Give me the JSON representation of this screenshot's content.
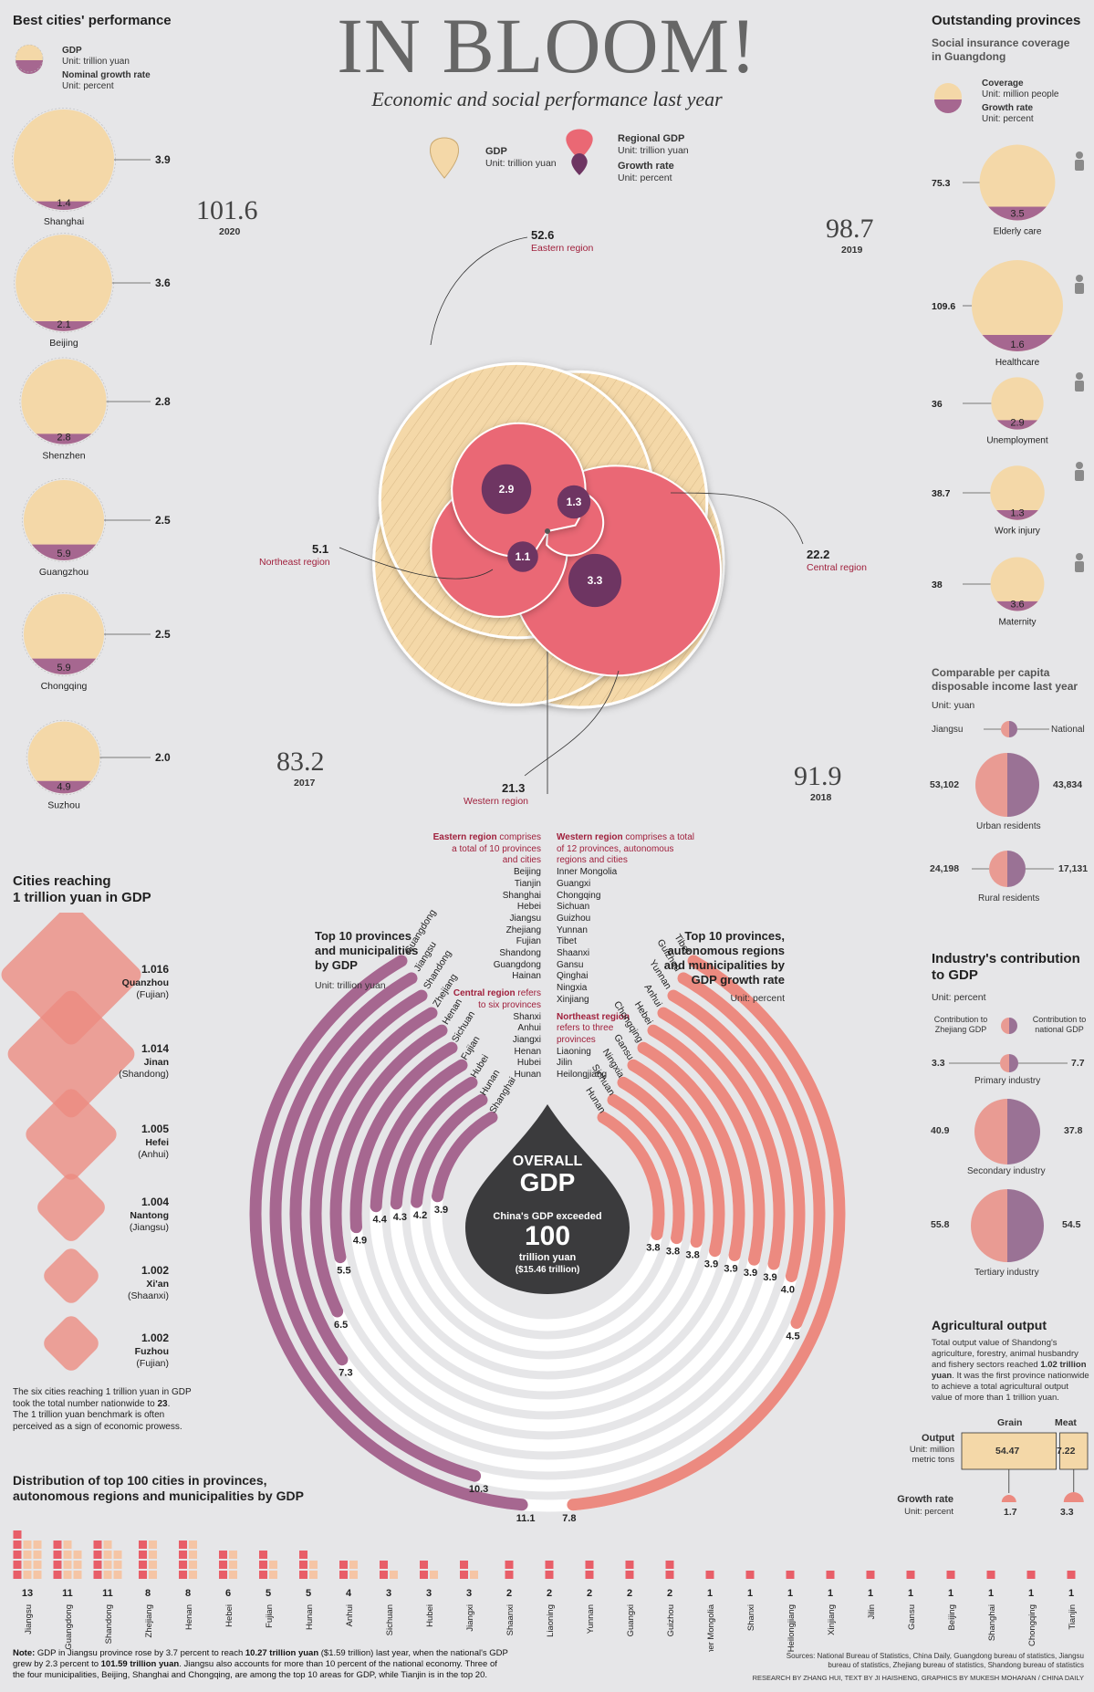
{
  "header": {
    "title": "IN BLOOM!",
    "subtitle": "Economic and social performance last year"
  },
  "flower_legend": {
    "gdp_label": "GDP",
    "gdp_unit": "Unit: trillion yuan",
    "regional_label": "Regional GDP",
    "regional_unit": "Unit: trillion yuan",
    "growth_label": "Growth rate",
    "growth_unit": "Unit: percent"
  },
  "best_cities": {
    "title": "Best cities' performance",
    "legend_gdp": "GDP",
    "legend_gdp_unit": "Unit: trillion yuan",
    "legend_growth": "Nominal growth rate",
    "legend_growth_unit": "Unit: percent",
    "items": [
      {
        "name": "Shanghai",
        "gdp": "3.9",
        "growth": "1.4"
      },
      {
        "name": "Beijing",
        "gdp": "3.6",
        "growth": "2.1"
      },
      {
        "name": "Shenzhen",
        "gdp": "2.8",
        "growth": "2.8"
      },
      {
        "name": "Guangzhou",
        "gdp": "2.5",
        "growth": "5.9"
      },
      {
        "name": "Chongqing",
        "gdp": "2.5",
        "growth": "5.9"
      },
      {
        "name": "Suzhou",
        "gdp": "2.0",
        "growth": "4.9"
      }
    ]
  },
  "trillion_cities": {
    "title_line1": "Cities reaching",
    "title_line2": "1 trillion yuan in GDP",
    "items": [
      {
        "value": "1.016",
        "city": "Quanzhou",
        "province": "(Fujian)"
      },
      {
        "value": "1.014",
        "city": "Jinan",
        "province": "(Shandong)"
      },
      {
        "value": "1.005",
        "city": "Hefei",
        "province": "(Anhui)"
      },
      {
        "value": "1.004",
        "city": "Nantong",
        "province": "(Jiangsu)"
      },
      {
        "value": "1.002",
        "city": "Xi'an",
        "province": "(Shaanxi)"
      },
      {
        "value": "1.002",
        "city": "Fuzhou",
        "province": "(Fujian)"
      }
    ],
    "note_line1": "The six cities reaching 1 trillion yuan in GDP",
    "note_line2_pre": "took the total number nationwide to ",
    "note_line2_num": "23",
    "note_line2_post": ".",
    "note_line3": "The 1 trillion yuan benchmark is often",
    "note_line4": "perceived as a sign of economic prowess."
  },
  "outstanding": {
    "title": "Outstanding provinces",
    "subtitle_line1": "Social insurance coverage",
    "subtitle_line2": "in Guangdong",
    "legend_coverage": "Coverage",
    "legend_coverage_unit": "Unit: million people",
    "legend_growth": "Growth rate",
    "legend_growth_unit": "Unit: percent",
    "items": [
      {
        "name": "Elderly care",
        "coverage": "75.3",
        "growth": "3.5"
      },
      {
        "name": "Healthcare",
        "coverage": "109.6",
        "growth": "1.6"
      },
      {
        "name": "Unemployment",
        "coverage": "36",
        "growth": "2.9"
      },
      {
        "name": "Work injury",
        "coverage": "38.7",
        "growth": "1.3"
      },
      {
        "name": "Maternity",
        "coverage": "38",
        "growth": "3.6"
      }
    ]
  },
  "income": {
    "title_line1": "Comparable per capita",
    "title_line2": "disposable income last year",
    "unit": "Unit: yuan",
    "legend_left": "Jiangsu",
    "legend_right": "National",
    "urban_label": "Urban residents",
    "urban_left": "53,102",
    "urban_right": "43,834",
    "rural_label": "Rural residents",
    "rural_left": "24,198",
    "rural_right": "17,131"
  },
  "industry": {
    "title_line1": "Industry's contribution",
    "title_line2": "to GDP",
    "unit": "Unit: percent",
    "legend_left_1": "Contribution to",
    "legend_left_2": "Zhejiang GDP",
    "legend_right_1": "Contribution to",
    "legend_right_2": "national GDP",
    "primary_label": "Primary industry",
    "primary_left": "3.3",
    "primary_right": "7.7",
    "secondary_label": "Secondary industry",
    "secondary_left": "40.9",
    "secondary_right": "37.8",
    "tertiary_label": "Tertiary industry",
    "tertiary_left": "55.8",
    "tertiary_right": "54.5"
  },
  "agri": {
    "title": "Agricultural output",
    "text_line1": "Total output value of Shandong's",
    "text_line2": "agriculture, forestry, animal husbandry",
    "text_line3_pre": "and fishery sectors reached ",
    "text_line3_bold": "1.02 trillion",
    "text_line4_bold": "yuan",
    "text_line4_post": ". It was the first province nationwide",
    "text_line5": "to achieve a total agricultural output",
    "text_line6": "value of more than 1 trillion yuan.",
    "col_grain": "Grain",
    "col_meat": "Meat",
    "output_label": "Output",
    "output_unit_1": "Unit: million",
    "output_unit_2": "metric tons",
    "grain_output": "54.47",
    "meat_output": "7.22",
    "growth_label": "Growth rate",
    "growth_unit": "Unit: percent",
    "grain_growth": "1.7",
    "meat_growth": "3.3"
  },
  "flower": {
    "years": [
      {
        "year": "2020",
        "value": "101.6"
      },
      {
        "year": "2019",
        "value": "98.7"
      },
      {
        "year": "2017",
        "value": "83.2"
      },
      {
        "year": "2018",
        "value": "91.9"
      }
    ],
    "regions": [
      {
        "name": "Eastern region",
        "gdp": "52.6",
        "growth": "2.9"
      },
      {
        "name": "Central region",
        "gdp": "22.2",
        "growth": "1.3"
      },
      {
        "name": "Northeast region",
        "gdp": "5.1",
        "growth": "1.1"
      },
      {
        "name": "Western region",
        "gdp": "21.3",
        "growth": "3.3"
      }
    ]
  },
  "region_lists": {
    "eastern_head_1": "Eastern region",
    "eastern_head_1b": " comprises",
    "eastern_head_2": "a total of 10 provinces",
    "eastern_head_3": "and cities",
    "eastern": [
      "Beijing",
      "Tianjin",
      "Shanghai",
      "Hebei",
      "Jiangsu",
      "Zhejiang",
      "Fujian",
      "Shandong",
      "Guangdong",
      "Hainan"
    ],
    "central_head_1": "Central region",
    "central_head_1b": " refers",
    "central_head_2": "to six provinces",
    "central": [
      "Shanxi",
      "Anhui",
      "Jiangxi",
      "Henan",
      "Hubei",
      "Hunan"
    ],
    "western_head_1": "Western region",
    "western_head_1b": " comprises a total",
    "western_head_2": "of 12 provinces, autonomous",
    "western_head_3": "regions and cities",
    "western": [
      "Inner Mongolia",
      "Guangxi",
      "Chongqing",
      "Sichuan",
      "Guizhou",
      "Yunnan",
      "Tibet",
      "Shaanxi",
      "Gansu",
      "Qinghai",
      "Ningxia",
      "Xinjiang"
    ],
    "northeast_head_1": "Northeast region",
    "northeast_head_2": "refers to three",
    "northeast_head_3": "provinces",
    "northeast": [
      "Liaoning",
      "Jilin",
      "Heilongjiang"
    ]
  },
  "overall": {
    "title_1": "OVERALL",
    "title_2": "GDP",
    "text_1": "China's GDP exceeded",
    "big": "100",
    "text_2": "trillion yuan",
    "text_3": "($15.46 trillion)"
  },
  "top10_gdp_title": {
    "line1": "Top 10 provinces",
    "line2": "and municipalities",
    "line3": "by GDP",
    "unit": "Unit: trillion yuan"
  },
  "top10_growth_title": {
    "line1": "Top 10 provinces,",
    "line2": "autonomous regions",
    "line3": "and municipalities by",
    "line4": "GDP growth rate",
    "unit": "Unit: percent"
  },
  "distribution": {
    "title_line1": "Distribution of top 100 cities in provinces,",
    "title_line2": "autonomous regions and municipalities by GDP"
  },
  "footer": {
    "note_prefix": "Note:",
    "note_line1_a": " GDP in Jiangsu province rose by 3.7 percent to reach ",
    "note_line1_b": "10.27 trillion yuan",
    "note_line1_c": " ($1.59 trillion) last year, when the national's GDP",
    "note_line2_a": "grew by 2.3 percent to ",
    "note_line2_b": "101.59 trillion yuan",
    "note_line2_c": ". Jiangsu also accounts for more than 10 percent of the national economy. Three of",
    "note_line3": "the four municipalities, Beijing, Shanghai and Chongqing, are among the top 10 areas for GDP, while Tianjin is in the top 20.",
    "sources_1": "Sources: National Bureau of Statistics, China Daily, Guangdong bureau of statistics, Jiangsu",
    "sources_2": "bureau of statistics, Zhejiang bureau of statistics, Shandong bureau of statistics",
    "credits": "RESEARCH BY ZHANG HUI, TEXT BY JI HAISHENG, GRAPHICS BY MUKESH MOHANAN / CHINA DAILY"
  },
  "colors": {
    "cream": "#f4d8a8",
    "pink": "#ea6874",
    "plum": "#6e3562",
    "purple_arc": "#a66790",
    "salmon_arc": "#ec8a80",
    "square_red": "#e85e68",
    "square_light": "#f5c5a5",
    "dark_drop": "#3b3b3d"
  },
  "chart_data": [
    {
      "type": "bar",
      "title": "Top 10 provinces and municipalities by GDP",
      "unit": "Unit: trillion yuan",
      "categories": [
        "Guangdong",
        "Jiangsu",
        "Shandong",
        "Zhejiang",
        "Henan",
        "Sichuan",
        "Fujian",
        "Hubei",
        "Hunan",
        "Shanghai"
      ],
      "values": [
        11.1,
        10.3,
        7.3,
        6.5,
        5.5,
        4.9,
        4.4,
        4.3,
        4.2,
        3.9
      ]
    },
    {
      "type": "bar",
      "title": "Top 10 provinces, autonomous regions and municipalities by GDP growth rate",
      "unit": "Unit: percent",
      "categories": [
        "Tibet",
        "Guizhou",
        "Yunnan",
        "Anhui",
        "Hebei",
        "Chongqing",
        "Gansu",
        "Ningxia",
        "Sichuan",
        "Hunan"
      ],
      "values": [
        7.8,
        4.5,
        4.0,
        3.9,
        3.9,
        3.9,
        3.9,
        3.8,
        3.8,
        3.8
      ]
    },
    {
      "type": "bar",
      "title": "Distribution of top 100 cities in provinces, autonomous regions and municipalities by GDP",
      "categories": [
        "Jiangsu",
        "Guangdong",
        "Shandong",
        "Zhejiang",
        "Henan",
        "Hebei",
        "Fujian",
        "Hunan",
        "Anhui",
        "Sichuan",
        "Hubei",
        "Jiangxi",
        "Shaanxi",
        "Liaoning",
        "Yunnan",
        "Guangxi",
        "Guizhou",
        "Inner Mongolia",
        "Shanxi",
        "Heilongjiang",
        "Xinjiang",
        "Jilin",
        "Gansu",
        "Beijing",
        "Shanghai",
        "Chongqing",
        "Tianjin"
      ],
      "values": [
        13,
        11,
        11,
        8,
        8,
        6,
        5,
        5,
        4,
        3,
        3,
        3,
        2,
        2,
        2,
        2,
        2,
        1,
        1,
        1,
        1,
        1,
        1,
        1,
        1,
        1,
        1
      ]
    }
  ]
}
